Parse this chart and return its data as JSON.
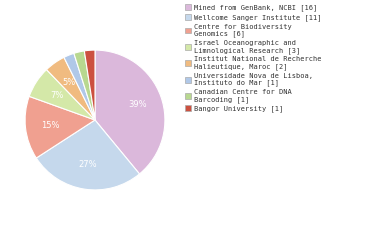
{
  "labels": [
    "Mined from GenBank, NCBI [16]",
    "Wellcome Sanger Institute [11]",
    "Centre for Biodiversity\nGenomics [6]",
    "Israel Oceanographic and\nLimnological Research [3]",
    "Institut National de Recherche\nHalieutique, Maroc [2]",
    "Universidade Nova de Lisboa,\nInstituto do Mar [1]",
    "Canadian Centre for DNA\nBarcoding [1]",
    "Bangor University [1]"
  ],
  "values": [
    16,
    11,
    6,
    3,
    2,
    1,
    1,
    1
  ],
  "colors": [
    "#dbb8db",
    "#c5d8ec",
    "#f0a090",
    "#d4e8a8",
    "#f0bb80",
    "#b0c8e8",
    "#b8d890",
    "#cc5040"
  ],
  "legend_labels": [
    "Mined from GenBank, NCBI [16]",
    "Wellcome Sanger Institute [11]",
    "Centre for Biodiversity\nGenomics [6]",
    "Israel Oceanographic and\nLimnological Research [3]",
    "Institut National de Recherche\nHalieutique, Maroc [2]",
    "Universidade Nova de Lisboa,\nInstituto do Mar [1]",
    "Canadian Centre for DNA\nBarcoding [1]",
    "Bangor University [1]"
  ],
  "startangle": 90,
  "text_color": "#333333",
  "background_color": "#ffffff"
}
